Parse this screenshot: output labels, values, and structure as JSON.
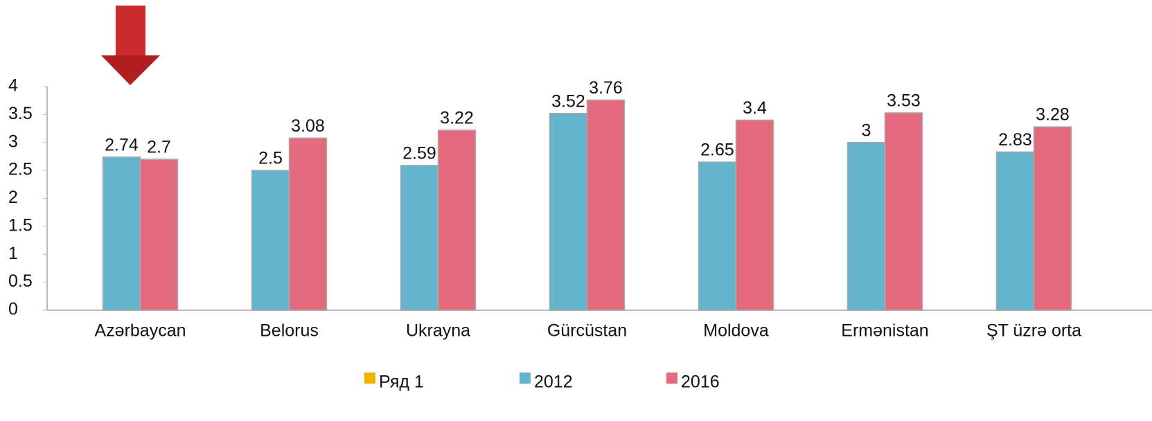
{
  "chart_data": {
    "type": "bar",
    "categories": [
      "Azərbaycan",
      "Belorus",
      "Ukrayna",
      "Gürcüstan",
      "Moldova",
      "Ermənistan",
      "ŞT üzrə orta"
    ],
    "series": [
      {
        "name": "Ряд 1",
        "color": "#f0b400",
        "values": [
          null,
          null,
          null,
          null,
          null,
          null,
          null
        ]
      },
      {
        "name": "2012",
        "color": "#63b4cc",
        "values": [
          2.74,
          2.5,
          2.59,
          3.52,
          2.65,
          3,
          2.83
        ]
      },
      {
        "name": "2016",
        "color": "#e46a7e",
        "values": [
          2.7,
          3.08,
          3.22,
          3.76,
          3.4,
          3.53,
          3.28
        ]
      }
    ],
    "ylim": [
      0,
      4
    ],
    "yticks": [
      0,
      0.5,
      1,
      1.5,
      2,
      2.5,
      3,
      3.5,
      4
    ],
    "grid": false,
    "legend": "bottom"
  }
}
